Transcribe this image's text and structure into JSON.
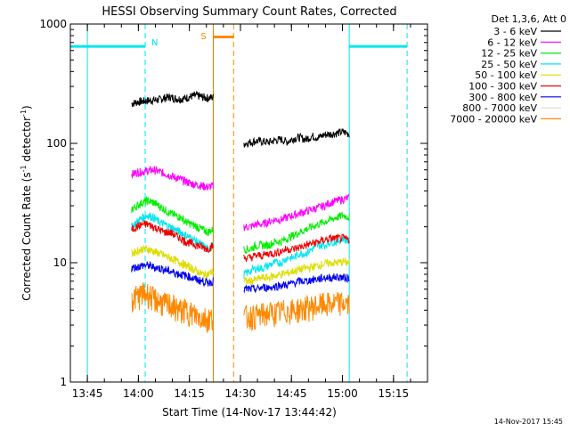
{
  "chart_data": {
    "type": "line",
    "title": "HESSI Observing Summary Count Rates, Corrected",
    "xlabel": "Start Time (14-Nov-17 13:44:42)",
    "ylabel": "Corrected Count Rate (s",
    "ylabel_sup1": "-1",
    "ylabel_mid": " detector",
    "ylabel_sup2": "-1",
    "ylabel_end": ")",
    "yscale": "log",
    "ylim": [
      1,
      1000
    ],
    "xlim": [
      "13:40",
      "15:25"
    ],
    "x_tick_labels": [
      "13:45",
      "14:00",
      "14:15",
      "14:30",
      "14:45",
      "15:00",
      "15:15"
    ],
    "y_tick_labels": [
      "1",
      "10",
      "100",
      "1000"
    ],
    "legend_header": "Det 1,3,6, Att 0",
    "legend_position": "top-right",
    "footer_date": "14-Nov-2017 15:45",
    "annotations": [
      {
        "text": "N",
        "color": "#00e5ee"
      },
      {
        "text": "S",
        "color": "#ff8800"
      }
    ],
    "series": [
      {
        "name": "3 - 6 keV",
        "color": "#000000",
        "segments": [
          {
            "start": "13:58",
            "end": "14:22",
            "values": [
              215,
              222,
              225,
              228,
              230,
              232,
              240,
              245,
              238,
              235,
              240,
              248,
              252,
              245,
              240,
              243
            ]
          },
          {
            "start": "14:31",
            "end": "15:02",
            "values": [
              100,
              102,
              105,
              104,
              102,
              106,
              108,
              103,
              110,
              112,
              108,
              115,
              112,
              118,
              120,
              122,
              125,
              120
            ]
          }
        ]
      },
      {
        "name": "6 - 12 keV",
        "color": "#ff00ff",
        "segments": [
          {
            "start": "13:58",
            "end": "14:22",
            "values": [
              55,
              57,
              58,
              59,
              60,
              58,
              56,
              54,
              52,
              50,
              48,
              46,
              45,
              44,
              43,
              44
            ]
          },
          {
            "start": "14:31",
            "end": "15:02",
            "values": [
              20,
              20,
              21,
              21,
              22,
              23,
              23,
              24,
              25,
              26,
              27,
              28,
              29,
              30,
              32,
              33,
              34,
              35
            ]
          }
        ]
      },
      {
        "name": "12 - 25 keV",
        "color": "#00ee00",
        "segments": [
          {
            "start": "13:58",
            "end": "14:22",
            "values": [
              28,
              30,
              32,
              33,
              32,
              30,
              28,
              26,
              25,
              24,
              22,
              21,
              20,
              19,
              18,
              19
            ]
          },
          {
            "start": "14:31",
            "end": "15:02",
            "values": [
              13,
              13,
              14,
              14,
              14,
              15,
              15,
              16,
              17,
              18,
              19,
              20,
              21,
              22,
              23,
              24,
              25,
              24
            ]
          }
        ]
      },
      {
        "name": "25 - 50 keV",
        "color": "#00e5ee",
        "segments": [
          {
            "start": "13:58",
            "end": "14:22",
            "values": [
              20,
              22,
              24,
              25,
              24,
              22,
              21,
              20,
              19,
              18,
              17,
              16,
              15,
              14,
              13,
              14
            ]
          },
          {
            "start": "14:31",
            "end": "15:02",
            "values": [
              8,
              8.5,
              9,
              9,
              9.5,
              10,
              10,
              11,
              11,
              12,
              12,
              13,
              14,
              14,
              15,
              15,
              16,
              15
            ]
          }
        ]
      },
      {
        "name": "50 - 100 keV",
        "color": "#dddd00",
        "segments": [
          {
            "start": "13:58",
            "end": "14:22",
            "values": [
              12,
              12.5,
              13,
              13,
              12.5,
              12,
              11.5,
              11,
              10.5,
              10,
              9.5,
              9,
              8.5,
              8,
              8,
              8.5
            ]
          },
          {
            "start": "14:31",
            "end": "15:02",
            "values": [
              7,
              7,
              7.2,
              7.5,
              7.5,
              7.8,
              8,
              8.2,
              8.5,
              8.8,
              9,
              9.2,
              9.5,
              9.8,
              10,
              10,
              10.2,
              10
            ]
          }
        ]
      },
      {
        "name": "100 - 300 keV",
        "color": "#ee0000",
        "segments": [
          {
            "start": "13:58",
            "end": "14:22",
            "values": [
              19,
              20,
              21,
              21,
              20,
              19,
              18,
              18,
              17,
              16,
              15,
              14.5,
              14,
              13.5,
              13,
              14
            ]
          },
          {
            "start": "14:31",
            "end": "15:02",
            "values": [
              11,
              11,
              11.5,
              11.5,
              12,
              12,
              12.5,
              13,
              13,
              13.5,
              14,
              14.5,
              15,
              15.5,
              16,
              16,
              16,
              15.5
            ]
          }
        ]
      },
      {
        "name": "300 - 800 keV",
        "color": "#0000ee",
        "segments": [
          {
            "start": "13:58",
            "end": "14:22",
            "values": [
              9,
              9.2,
              9.5,
              9.5,
              9.2,
              9,
              8.8,
              8.5,
              8.2,
              8,
              7.8,
              7.5,
              7.2,
              7,
              6.8,
              7
            ]
          },
          {
            "start": "14:31",
            "end": "15:02",
            "values": [
              6,
              6,
              6,
              6.2,
              6.2,
              6.3,
              6.5,
              6.5,
              6.8,
              7,
              7,
              7.2,
              7.3,
              7.5,
              7.5,
              7.6,
              7.5,
              7.4
            ]
          }
        ]
      },
      {
        "name": "800 - 7000 keV",
        "color": "#dddddd",
        "segments": []
      },
      {
        "name": "7000 - 20000 keV",
        "color": "#ff8800",
        "segments": [
          {
            "start": "13:58",
            "end": "14:22",
            "values": [
              5,
              5.2,
              5.5,
              5.5,
              5,
              4.8,
              4.5,
              4.5,
              4.2,
              4,
              4,
              3.8,
              3.6,
              3.5,
              3.4,
              3.5
            ]
          },
          {
            "start": "14:31",
            "end": "15:02",
            "values": [
              3.5,
              3.6,
              3.6,
              3.7,
              3.8,
              3.8,
              3.9,
              4,
              4,
              4.1,
              4.2,
              4.3,
              4.4,
              4.5,
              4.5,
              4.6,
              4.6,
              4.5
            ]
          }
        ]
      }
    ],
    "flags": {
      "night_start": "13:45",
      "night_end": "14:02",
      "night2_start": "15:02",
      "night2_end": "15:19",
      "saa_start": "14:22",
      "saa_end": "14:28",
      "night_level": 650,
      "saa_level": 780,
      "line_times_cyan": [
        "13:45",
        "14:02",
        "15:02",
        "15:19"
      ],
      "line_times_orange": [
        "14:22",
        "14:28"
      ]
    }
  }
}
